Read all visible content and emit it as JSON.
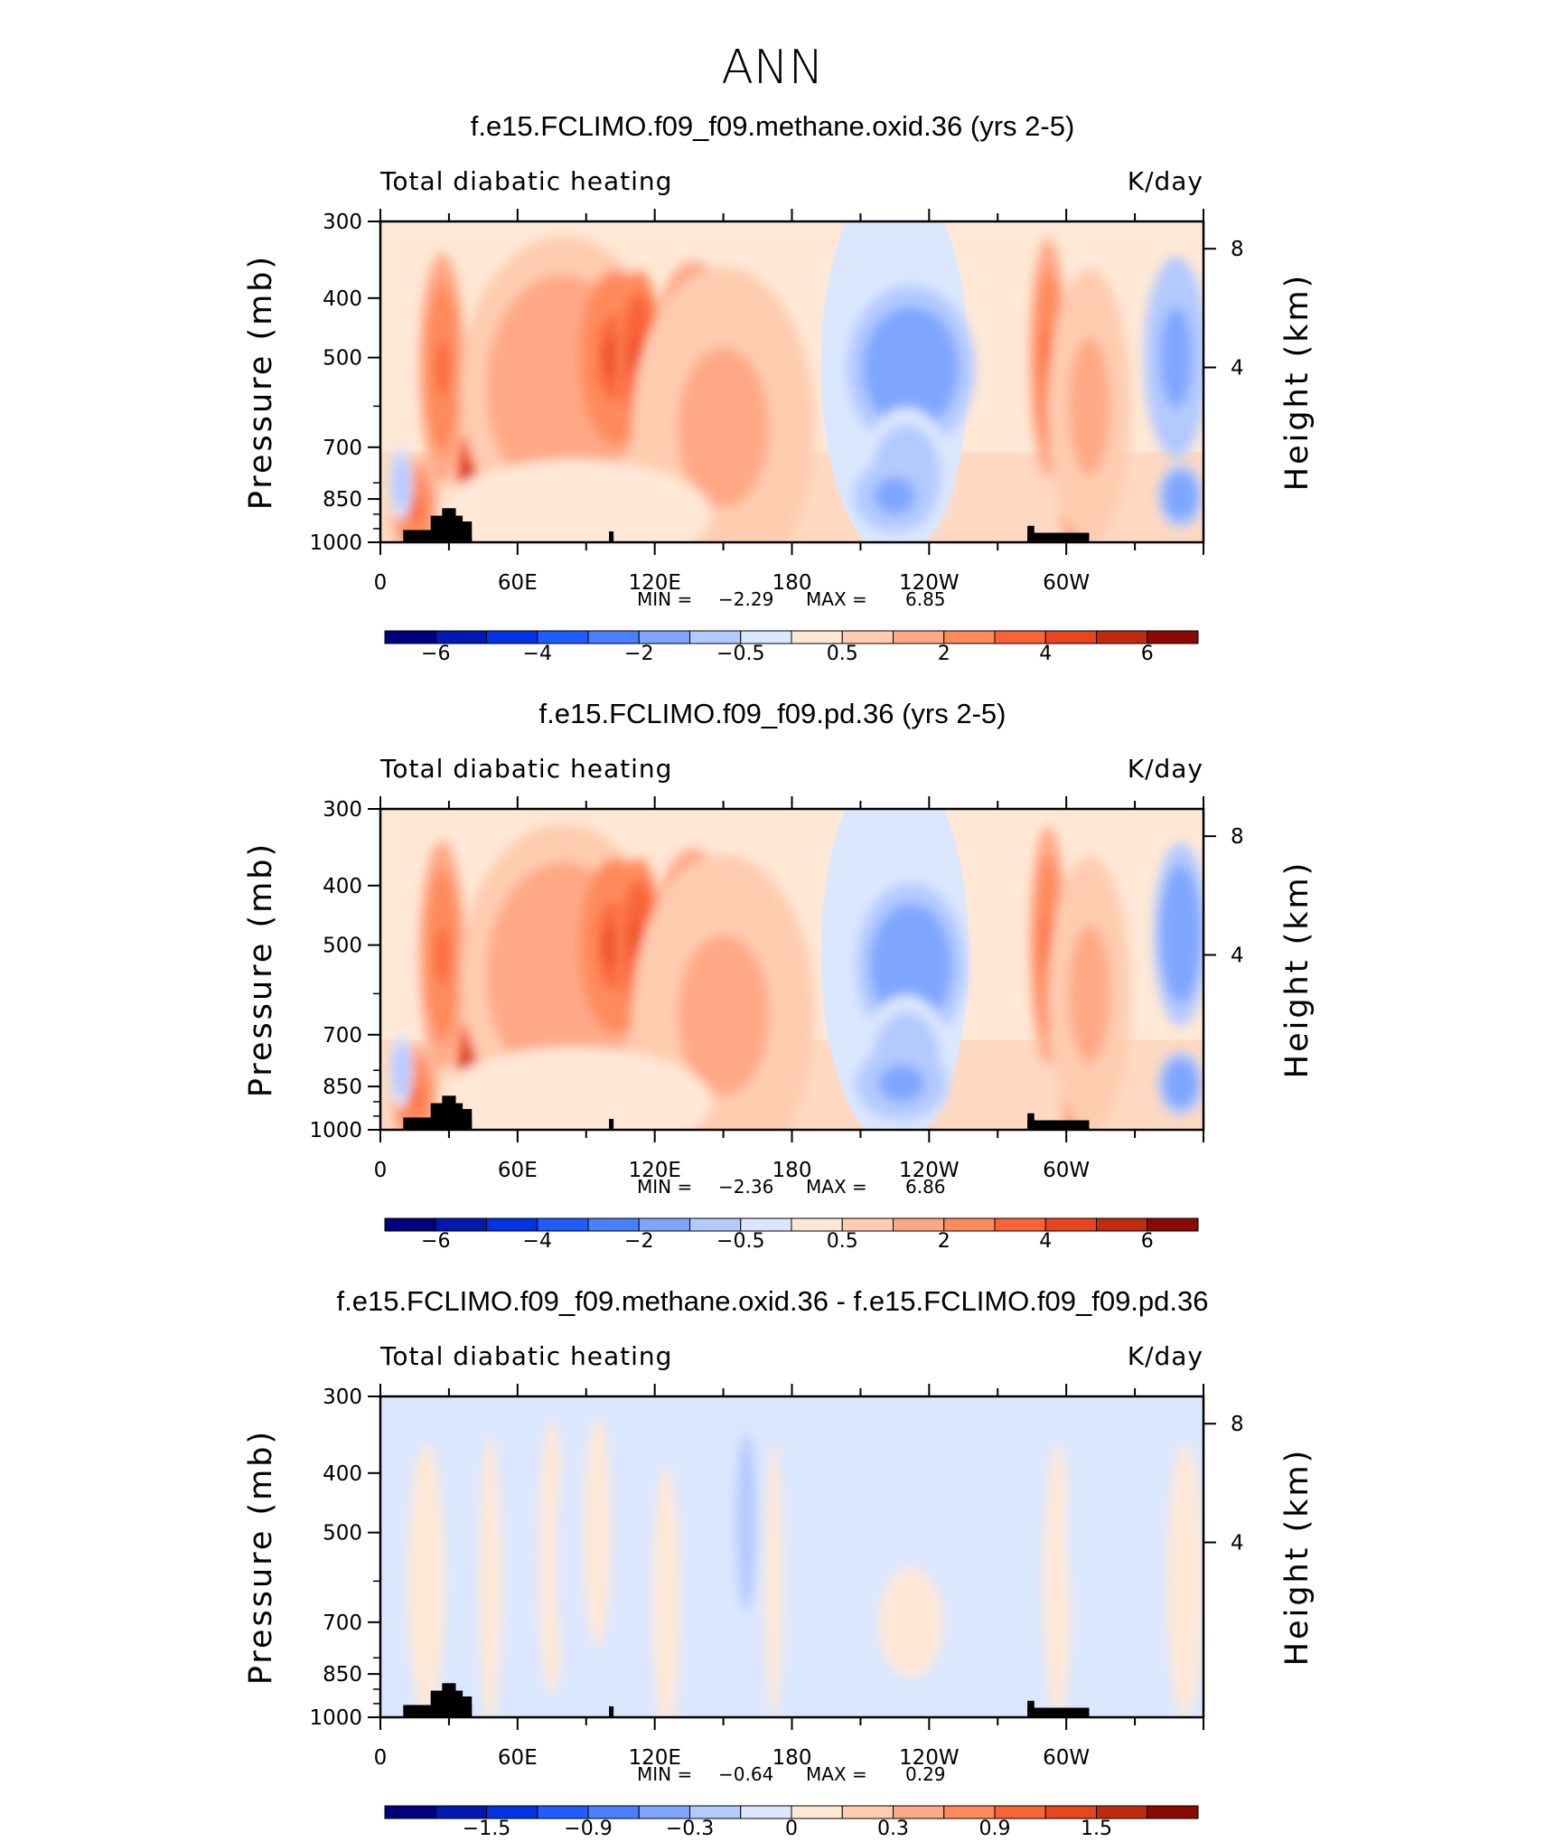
{
  "figure_title": "ANN",
  "palette": [
    "#00007f",
    "#0019b3",
    "#0033e6",
    "#1f5cff",
    "#4a7fff",
    "#7fa6ff",
    "#b3caff",
    "#dbe7ff",
    "#ffe8d6",
    "#ffccb0",
    "#ffa886",
    "#ff8a5c",
    "#f96337",
    "#e8441d",
    "#c22a0e",
    "#8b0a00"
  ],
  "chart_data": [
    {
      "type": "heatmap",
      "title": "f.e15.FCLIMO.f09_f09.methane.oxid.36 (yrs 2-5)",
      "left_label": "Total diabatic heating",
      "right_label": "K/day",
      "ylabel": "Pressure (mb)",
      "ylabel_right": "Height (km)",
      "x_ticks": [
        "0",
        "60E",
        "120E",
        "180",
        "120W",
        "60W"
      ],
      "y_ticks": [
        "300",
        "400",
        "500",
        "700",
        "850",
        "1000"
      ],
      "y_ticks_right": [
        "8",
        "4"
      ],
      "min_label": "MIN =",
      "min_value": "−2.29",
      "max_label": "MAX =",
      "max_value": "6.85",
      "colorbar_labels": [
        "−6",
        "−4",
        "−2",
        "−0.5",
        "0.5",
        "2",
        "4",
        "6"
      ],
      "blobs": [
        {
          "lon": 15,
          "p": 880,
          "r": 10,
          "rp": 110,
          "v": 3,
          "blur": 1
        },
        {
          "lon": 27,
          "p": 520,
          "r": 10,
          "rp": 250,
          "v": 3.5,
          "blur": 1
        },
        {
          "lon": 38,
          "p": 860,
          "r": 5,
          "rp": 160,
          "v": 6.85,
          "blur": 0.5
        },
        {
          "lon": 80,
          "p": 560,
          "r": 45,
          "rp": 330,
          "v": 1.8,
          "blur": 1
        },
        {
          "lon": 103,
          "p": 500,
          "r": 16,
          "rp": 190,
          "v": 4.2,
          "blur": 1
        },
        {
          "lon": 113,
          "p": 500,
          "r": 10,
          "rp": 190,
          "v": 4.5,
          "blur": 1
        },
        {
          "lon": 137,
          "p": 500,
          "r": 18,
          "rp": 210,
          "v": 3.6,
          "blur": 1
        },
        {
          "lon": 150,
          "p": 650,
          "r": 40,
          "rp": 350,
          "v": 1.2,
          "blur": 1
        },
        {
          "lon": 85,
          "p": 900,
          "r": 60,
          "rp": 120,
          "v": 0.4,
          "blur": 1
        },
        {
          "lon": 232,
          "p": 520,
          "r": 28,
          "rp": 180,
          "v": -1.8,
          "blur": 1
        },
        {
          "lon": 230,
          "p": 780,
          "r": 20,
          "rp": 150,
          "v": -0.8,
          "blur": 1
        },
        {
          "lon": 225,
          "p": 840,
          "r": 18,
          "rp": 80,
          "v": -1.2,
          "blur": 1
        },
        {
          "lon": 292,
          "p": 500,
          "r": 8,
          "rp": 260,
          "v": 3.5,
          "blur": 1
        },
        {
          "lon": 304,
          "p": 880,
          "r": 6,
          "rp": 80,
          "v": 4,
          "blur": 1
        },
        {
          "lon": 310,
          "p": 600,
          "r": 18,
          "rp": 300,
          "v": 1.4,
          "blur": 1
        },
        {
          "lon": 348,
          "p": 500,
          "r": 14,
          "rp": 220,
          "v": -1.2,
          "blur": 1
        },
        {
          "lon": 350,
          "p": 840,
          "r": 10,
          "rp": 70,
          "v": -1.6,
          "blur": 1
        },
        {
          "lon": 9,
          "p": 800,
          "r": 5,
          "rp": 80,
          "v": -0.8,
          "blur": 1
        }
      ],
      "terrain": [
        {
          "lon0": 10,
          "lon1": 40,
          "p": 955
        },
        {
          "lon0": 22,
          "lon1": 36,
          "p": 905
        },
        {
          "lon0": 27,
          "lon1": 33,
          "p": 880
        },
        {
          "lon0": 35,
          "lon1": 40,
          "p": 925
        },
        {
          "lon0": 100,
          "lon1": 102,
          "p": 960
        },
        {
          "lon0": 283,
          "lon1": 310,
          "p": 965
        },
        {
          "lon0": 283,
          "lon1": 286,
          "p": 940
        }
      ]
    },
    {
      "type": "heatmap",
      "title": "f.e15.FCLIMO.f09_f09.pd.36 (yrs 2-5)",
      "left_label": "Total diabatic heating",
      "right_label": "K/day",
      "ylabel": "Pressure (mb)",
      "ylabel_right": "Height (km)",
      "x_ticks": [
        "0",
        "60E",
        "120E",
        "180",
        "120W",
        "60W"
      ],
      "y_ticks": [
        "300",
        "400",
        "500",
        "700",
        "850",
        "1000"
      ],
      "y_ticks_right": [
        "8",
        "4"
      ],
      "min_label": "MIN =",
      "min_value": "−2.36",
      "max_label": "MAX =",
      "max_value": "6.86",
      "colorbar_labels": [
        "−6",
        "−4",
        "−2",
        "−0.5",
        "0.5",
        "2",
        "4",
        "6"
      ],
      "blobs": [
        {
          "lon": 15,
          "p": 880,
          "r": 10,
          "rp": 110,
          "v": 3,
          "blur": 1
        },
        {
          "lon": 27,
          "p": 520,
          "r": 10,
          "rp": 250,
          "v": 3.5,
          "blur": 1
        },
        {
          "lon": 38,
          "p": 860,
          "r": 5,
          "rp": 160,
          "v": 6.86,
          "blur": 0.5
        },
        {
          "lon": 80,
          "p": 560,
          "r": 45,
          "rp": 330,
          "v": 1.8,
          "blur": 1
        },
        {
          "lon": 103,
          "p": 500,
          "r": 16,
          "rp": 190,
          "v": 4.3,
          "blur": 1
        },
        {
          "lon": 113,
          "p": 500,
          "r": 10,
          "rp": 190,
          "v": 4.5,
          "blur": 1
        },
        {
          "lon": 137,
          "p": 500,
          "r": 18,
          "rp": 210,
          "v": 3.8,
          "blur": 1
        },
        {
          "lon": 150,
          "p": 650,
          "r": 40,
          "rp": 350,
          "v": 1.3,
          "blur": 1
        },
        {
          "lon": 85,
          "p": 900,
          "r": 60,
          "rp": 120,
          "v": 0.4,
          "blur": 1
        },
        {
          "lon": 232,
          "p": 540,
          "r": 24,
          "rp": 180,
          "v": -1.7,
          "blur": 1
        },
        {
          "lon": 230,
          "p": 780,
          "r": 20,
          "rp": 150,
          "v": -0.8,
          "blur": 1
        },
        {
          "lon": 228,
          "p": 840,
          "r": 20,
          "rp": 80,
          "v": -1.4,
          "blur": 1
        },
        {
          "lon": 292,
          "p": 500,
          "r": 8,
          "rp": 260,
          "v": 3.4,
          "blur": 1
        },
        {
          "lon": 304,
          "p": 880,
          "r": 6,
          "rp": 80,
          "v": 4,
          "blur": 1
        },
        {
          "lon": 310,
          "p": 600,
          "r": 18,
          "rp": 300,
          "v": 1.4,
          "blur": 1
        },
        {
          "lon": 350,
          "p": 480,
          "r": 12,
          "rp": 200,
          "v": -1.6,
          "blur": 1
        },
        {
          "lon": 350,
          "p": 840,
          "r": 10,
          "rp": 70,
          "v": -1.6,
          "blur": 1
        },
        {
          "lon": 9,
          "p": 800,
          "r": 5,
          "rp": 80,
          "v": -0.8,
          "blur": 1
        }
      ],
      "terrain": [
        {
          "lon0": 10,
          "lon1": 40,
          "p": 955
        },
        {
          "lon0": 22,
          "lon1": 36,
          "p": 905
        },
        {
          "lon0": 27,
          "lon1": 33,
          "p": 880
        },
        {
          "lon0": 35,
          "lon1": 40,
          "p": 925
        },
        {
          "lon0": 100,
          "lon1": 102,
          "p": 960
        },
        {
          "lon0": 283,
          "lon1": 310,
          "p": 965
        },
        {
          "lon0": 283,
          "lon1": 286,
          "p": 940
        }
      ]
    },
    {
      "type": "heatmap",
      "title": "f.e15.FCLIMO.f09_f09.methane.oxid.36 - f.e15.FCLIMO.f09_f09.pd.36",
      "left_label": "Total diabatic heating",
      "right_label": "K/day",
      "ylabel": "Pressure (mb)",
      "ylabel_right": "Height (km)",
      "x_ticks": [
        "0",
        "60E",
        "120E",
        "180",
        "120W",
        "60W"
      ],
      "y_ticks": [
        "300",
        "400",
        "500",
        "700",
        "850",
        "1000"
      ],
      "y_ticks_right": [
        "8",
        "4"
      ],
      "min_label": "MIN =",
      "min_value": "−0.64",
      "max_label": "MAX =",
      "max_value": "0.29",
      "colorbar_labels": [
        "−1.5",
        "−0.9",
        "−0.3",
        "0",
        "0.3",
        "0.9",
        "1.5"
      ],
      "blobs": [
        {
          "lon": 20,
          "p": 600,
          "r": 8,
          "rp": 300,
          "v": 0.2,
          "blur": 1
        },
        {
          "lon": 48,
          "p": 600,
          "r": 5,
          "rp": 320,
          "v": 0.15,
          "blur": 1
        },
        {
          "lon": 62,
          "p": 600,
          "r": 8,
          "rp": 320,
          "v": -0.2,
          "blur": 1
        },
        {
          "lon": 75,
          "p": 550,
          "r": 6,
          "rp": 300,
          "v": 0.2,
          "blur": 1
        },
        {
          "lon": 85,
          "p": 560,
          "r": 8,
          "rp": 300,
          "v": -0.25,
          "blur": 1
        },
        {
          "lon": 95,
          "p": 500,
          "r": 6,
          "rp": 250,
          "v": 0.2,
          "blur": 1
        },
        {
          "lon": 113,
          "p": 650,
          "r": 6,
          "rp": 300,
          "v": -0.3,
          "blur": 1
        },
        {
          "lon": 125,
          "p": 650,
          "r": 6,
          "rp": 300,
          "v": 0.15,
          "blur": 1
        },
        {
          "lon": 140,
          "p": 750,
          "r": 5,
          "rp": 200,
          "v": -0.2,
          "blur": 1
        },
        {
          "lon": 160,
          "p": 480,
          "r": 6,
          "rp": 260,
          "v": -0.55,
          "blur": 1
        },
        {
          "lon": 172,
          "p": 600,
          "r": 4,
          "rp": 300,
          "v": 0.2,
          "blur": 1
        },
        {
          "lon": 232,
          "p": 700,
          "r": 14,
          "rp": 120,
          "v": 0.2,
          "blur": 1
        },
        {
          "lon": 270,
          "p": 650,
          "r": 6,
          "rp": 250,
          "v": -0.2,
          "blur": 1
        },
        {
          "lon": 296,
          "p": 600,
          "r": 6,
          "rp": 300,
          "v": 0.2,
          "blur": 1
        },
        {
          "lon": 305,
          "p": 500,
          "r": 5,
          "rp": 200,
          "v": -0.3,
          "blur": 1
        },
        {
          "lon": 352,
          "p": 600,
          "r": 8,
          "rp": 300,
          "v": 0.15,
          "blur": 1
        }
      ],
      "terrain": [
        {
          "lon0": 10,
          "lon1": 40,
          "p": 955
        },
        {
          "lon0": 22,
          "lon1": 36,
          "p": 905
        },
        {
          "lon0": 27,
          "lon1": 33,
          "p": 880
        },
        {
          "lon0": 35,
          "lon1": 40,
          "p": 925
        },
        {
          "lon0": 100,
          "lon1": 102,
          "p": 960
        },
        {
          "lon0": 283,
          "lon1": 310,
          "p": 965
        },
        {
          "lon0": 283,
          "lon1": 286,
          "p": 940
        }
      ]
    }
  ]
}
